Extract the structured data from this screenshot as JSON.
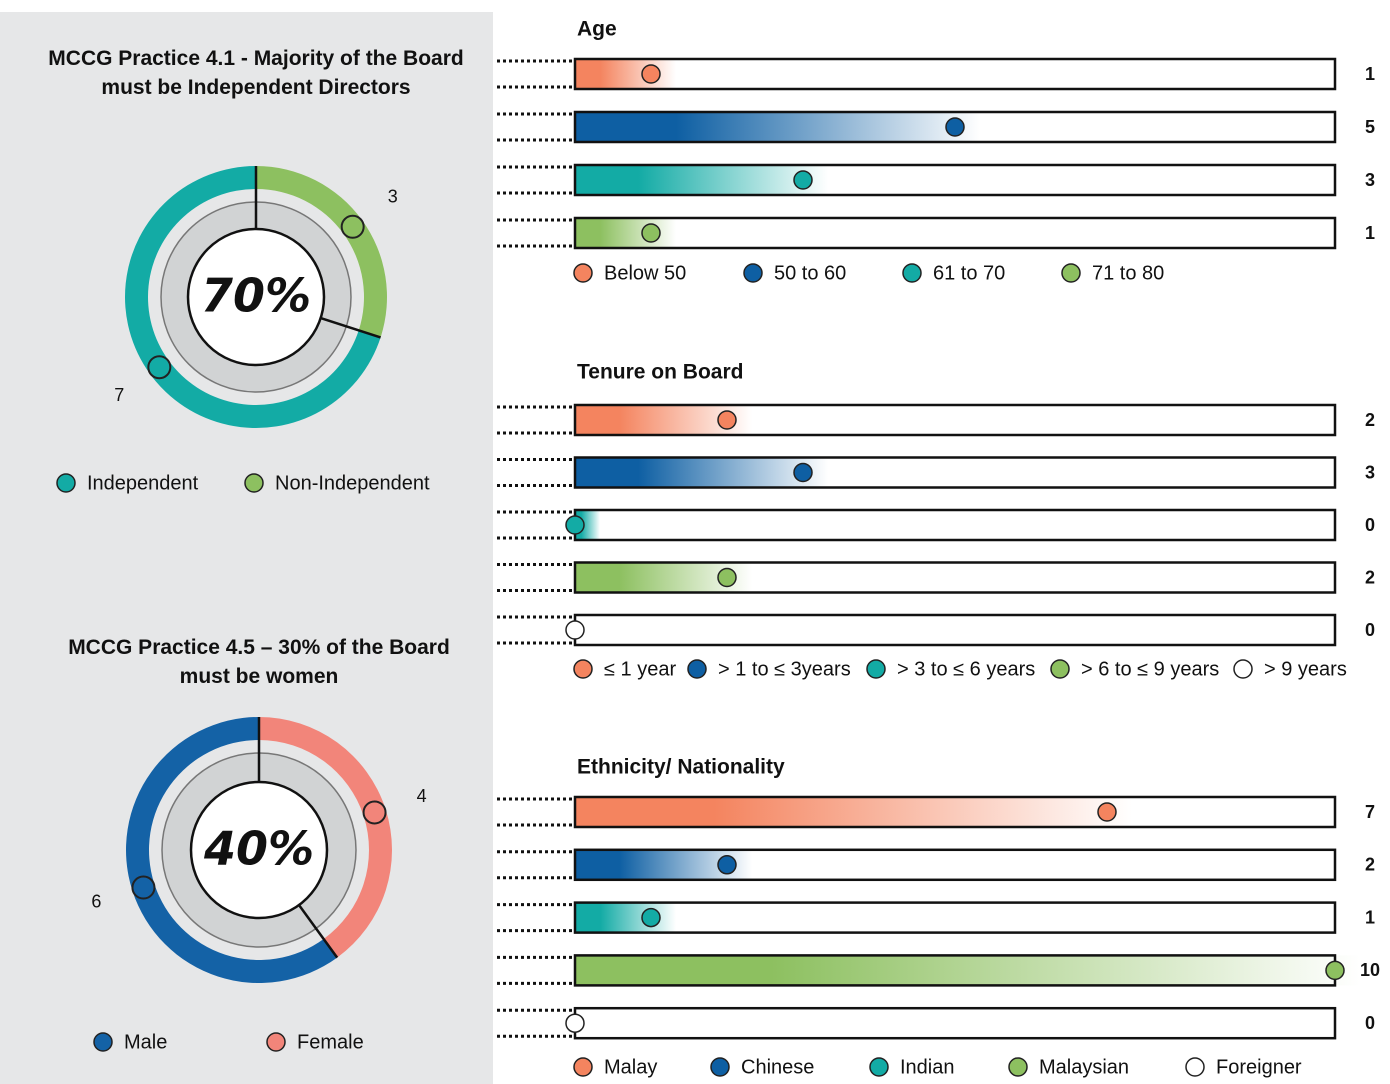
{
  "chart_data": [
    {
      "type": "donut",
      "title": "MCCG Practice 4.1 - Majority of the Board must be Independent Directors",
      "center_label": "70%",
      "categories": [
        "Independent",
        "Non-Independent"
      ],
      "values": [
        7,
        3
      ],
      "colors": [
        "#13aba5",
        "#8dc060"
      ]
    },
    {
      "type": "donut",
      "title": "MCCG Practice 4.5 – 30% of the Board must be women",
      "center_label": "40%",
      "categories": [
        "Male",
        "Female"
      ],
      "values": [
        6,
        4
      ],
      "colors": [
        "#1462a6",
        "#f2857a"
      ]
    },
    {
      "type": "bar",
      "title": "Age",
      "categories": [
        "Below 50",
        "50 to 60",
        "61 to 70",
        "71 to 80"
      ],
      "values": [
        1,
        5,
        3,
        1
      ],
      "colors": [
        "#f4845f",
        "#0e5fa3",
        "#13aba5",
        "#8dc060"
      ],
      "xlim": [
        0,
        10
      ]
    },
    {
      "type": "bar",
      "title": "Tenure on Board",
      "categories": [
        "≤ 1 year",
        "> 1 to ≤ 3years",
        "> 3 to ≤ 6 years",
        "> 6 to ≤ 9 years",
        "> 9 years"
      ],
      "values": [
        2,
        3,
        0,
        2,
        0
      ],
      "colors": [
        "#f4845f",
        "#0e5fa3",
        "#13aba5",
        "#8dc060",
        "#ffffff"
      ],
      "xlim": [
        0,
        10
      ]
    },
    {
      "type": "bar",
      "title": "Ethnicity/ Nationality",
      "categories": [
        "Malay",
        "Chinese",
        "Indian",
        "Malaysian",
        "Foreigner"
      ],
      "values": [
        7,
        2,
        1,
        10,
        0
      ],
      "colors": [
        "#f4845f",
        "#0e5fa3",
        "#13aba5",
        "#8dc060",
        "#ffffff"
      ],
      "xlim": [
        0,
        10
      ]
    }
  ]
}
